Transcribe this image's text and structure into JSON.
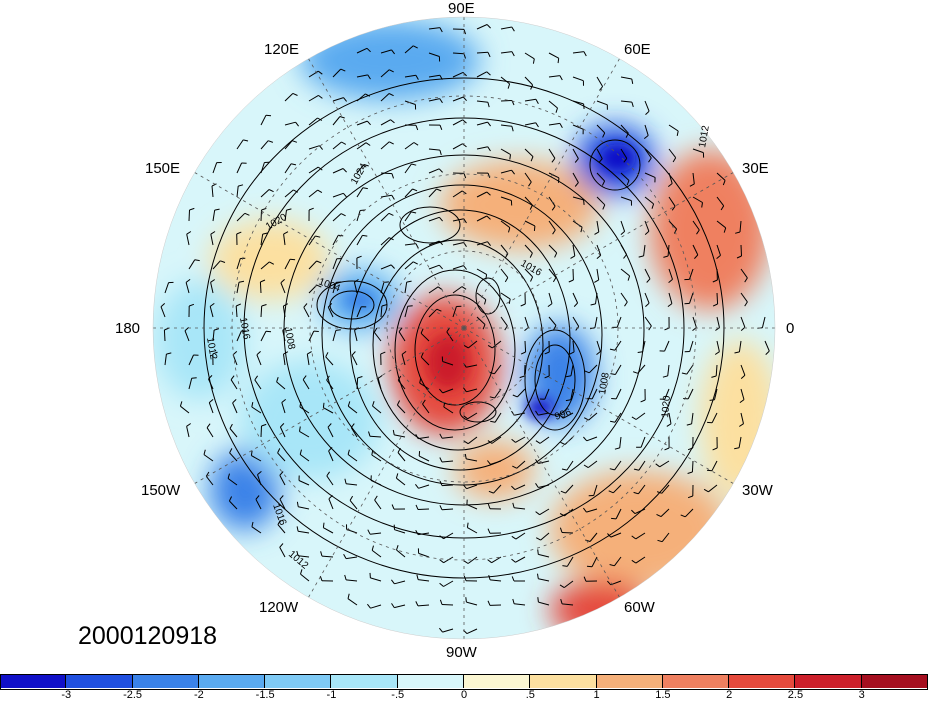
{
  "map": {
    "projection": "north polar stereographic",
    "longitude_labels": [
      {
        "key": "90E",
        "text": "90E"
      },
      {
        "key": "60E",
        "text": "60E"
      },
      {
        "key": "30E",
        "text": "30E"
      },
      {
        "key": "0",
        "text": "0"
      },
      {
        "key": "30W",
        "text": "30W"
      },
      {
        "key": "60W",
        "text": "60W"
      },
      {
        "key": "90W",
        "text": "90W"
      },
      {
        "key": "120W",
        "text": "120W"
      },
      {
        "key": "150W",
        "text": "150W"
      },
      {
        "key": "180",
        "text": "180"
      },
      {
        "key": "150E",
        "text": "150E"
      },
      {
        "key": "120E",
        "text": "120E"
      }
    ],
    "date_stamp": "2000120918",
    "isobar_labels": [
      "1008",
      "1012",
      "1016",
      "1020",
      "1004",
      "996",
      "1024"
    ],
    "anomaly_regions": [
      {
        "name": "warm-center",
        "level": 3
      },
      {
        "name": "warm-east-europe",
        "level": 2
      },
      {
        "name": "warm-north-atlantic",
        "level": 1.5
      },
      {
        "name": "warm-central-asia",
        "level": 1.5
      },
      {
        "name": "warm-north-pacific",
        "level": 1
      },
      {
        "name": "cold-siberia",
        "level": -3
      },
      {
        "name": "cold-canada",
        "level": -3
      },
      {
        "name": "cold-alaska",
        "level": -2
      },
      {
        "name": "cold-east-asia",
        "level": -1.5
      }
    ]
  },
  "colorbar": {
    "colors": [
      "#1010c8",
      "#2050e0",
      "#3a82e8",
      "#5aaaf0",
      "#7fcaf5",
      "#a8e6f8",
      "#d8f6fa",
      "#fbf6d2",
      "#fce0a0",
      "#f5b07a",
      "#ef8060",
      "#e54a3c",
      "#cc1f2a",
      "#a50f1f"
    ],
    "ticks": [
      "-3",
      "-2.5",
      "-2",
      "-1.5",
      "-1",
      "-.5",
      "0",
      ".5",
      "1",
      "1.5",
      "2",
      "2.5",
      "3"
    ]
  },
  "colors": {
    "background": "#ffffff",
    "contour": "#000000",
    "grid": "#555555"
  }
}
